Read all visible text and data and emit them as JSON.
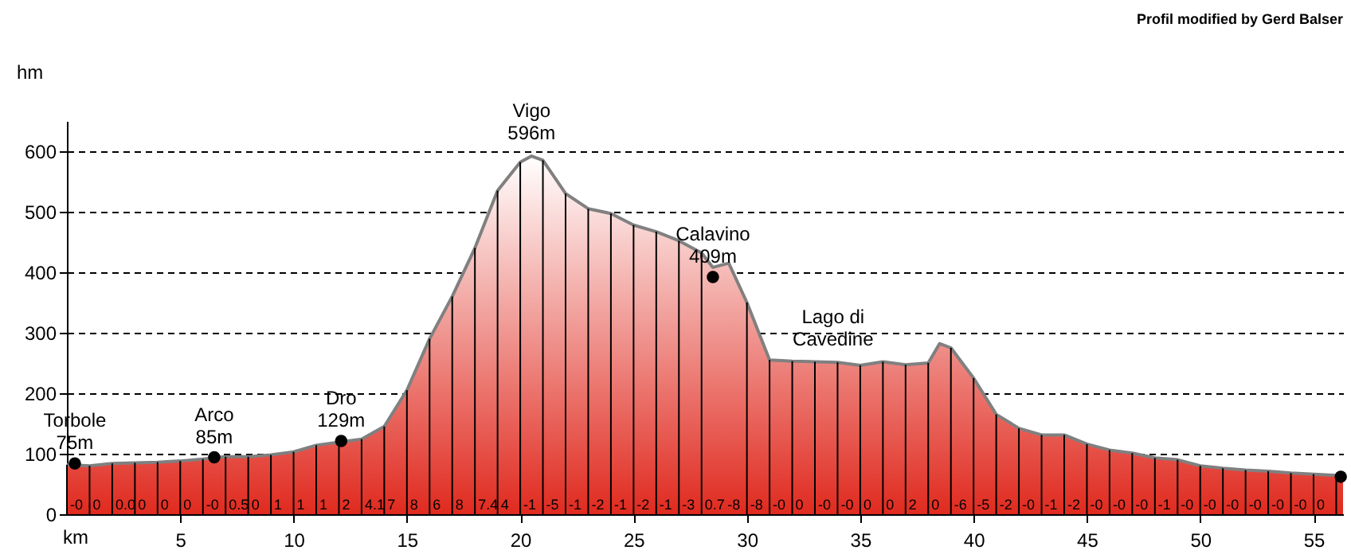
{
  "chart_data": {
    "type": "area",
    "title": "Profil modified by Gerd Balser",
    "xlabel": "km",
    "ylabel": "hm",
    "xlim": [
      0,
      56.3
    ],
    "xticks": [
      5,
      10,
      15,
      20,
      25,
      30,
      35,
      40,
      45,
      50,
      55
    ],
    "ylim": [
      0,
      650
    ],
    "yticks": [
      0,
      100,
      200,
      300,
      400,
      500,
      600
    ],
    "grid": true,
    "series": [
      {
        "color": "#e02a1f",
        "x": [
          0,
          1,
          2,
          3,
          4,
          5,
          6,
          7,
          8,
          9,
          10,
          11,
          12,
          13,
          14,
          15,
          16,
          17,
          18,
          19,
          20,
          20.5,
          21,
          22,
          23,
          24,
          25,
          26,
          27,
          28,
          28.5,
          29.2,
          30,
          31,
          32,
          33,
          34,
          35,
          36,
          37,
          38,
          38.5,
          39,
          40,
          41,
          42,
          43,
          44,
          45,
          46,
          47,
          48,
          49,
          50,
          51,
          52,
          53,
          54,
          55,
          56,
          56.3
        ],
        "values": [
          82,
          80,
          84,
          85,
          86,
          88,
          91,
          95,
          95,
          98,
          103,
          114,
          119,
          124,
          145,
          205,
          290,
          360,
          440,
          535,
          582,
          592,
          585,
          530,
          505,
          497,
          478,
          467,
          452,
          432,
          408,
          415,
          350,
          255,
          253,
          252,
          251,
          246,
          252,
          247,
          250,
          282,
          275,
          225,
          165,
          142,
          131,
          131,
          116,
          106,
          101,
          93,
          90,
          80,
          76,
          73,
          71,
          68,
          66,
          64,
          63
        ]
      },
      {
        "type": "scatter",
        "color": "#000000",
        "marker": "circle",
        "x": [
          0.35,
          6.5,
          12.1,
          28.5,
          56.2
        ],
        "values": [
          84,
          94,
          121,
          392,
          62
        ]
      }
    ],
    "annotations": [
      {
        "text": "Torbole\n75m",
        "x": 0.35,
        "y": 84
      },
      {
        "text": "Arco\n85m",
        "x": 6.5,
        "y": 94
      },
      {
        "text": "Dro\n129m",
        "x": 12.1,
        "y": 121
      },
      {
        "text": "Vigo\n596m",
        "x": 20.5,
        "y": 596
      },
      {
        "text": "Calavino\n409m",
        "x": 28.5,
        "y": 392
      },
      {
        "text": "Lago di\nCavedine",
        "x": 33.8,
        "y": 255
      },
      {
        "text": "-0",
        "x": 0,
        "y": 0
      },
      {
        "text": "0",
        "x": 1,
        "y": 0
      },
      {
        "text": "0.0",
        "x": 2,
        "y": 0
      },
      {
        "text": "0",
        "x": 3,
        "y": 0
      },
      {
        "text": "0",
        "x": 4,
        "y": 0
      },
      {
        "text": "0",
        "x": 5,
        "y": 0
      },
      {
        "text": "-0",
        "x": 6,
        "y": 0
      },
      {
        "text": "0.5",
        "x": 7,
        "y": 0
      },
      {
        "text": "0",
        "x": 8,
        "y": 0
      },
      {
        "text": "1",
        "x": 9,
        "y": 0
      },
      {
        "text": "1",
        "x": 10,
        "y": 0
      },
      {
        "text": "1",
        "x": 11,
        "y": 0
      },
      {
        "text": "2",
        "x": 12,
        "y": 0
      },
      {
        "text": "4.1",
        "x": 13,
        "y": 0
      },
      {
        "text": "7",
        "x": 14,
        "y": 0
      },
      {
        "text": "8",
        "x": 15,
        "y": 0
      },
      {
        "text": "6",
        "x": 16,
        "y": 0
      },
      {
        "text": "8",
        "x": 17,
        "y": 0
      },
      {
        "text": "7.4",
        "x": 18,
        "y": 0
      },
      {
        "text": "4",
        "x": 19,
        "y": 0
      },
      {
        "text": "-1",
        "x": 20,
        "y": 0
      },
      {
        "text": "-5",
        "x": 21,
        "y": 0
      },
      {
        "text": "-1",
        "x": 22,
        "y": 0
      },
      {
        "text": "-2",
        "x": 23,
        "y": 0
      },
      {
        "text": "-1",
        "x": 24,
        "y": 0
      },
      {
        "text": "-2",
        "x": 25,
        "y": 0
      },
      {
        "text": "-1",
        "x": 26,
        "y": 0
      },
      {
        "text": "-3",
        "x": 27,
        "y": 0
      },
      {
        "text": "0.7",
        "x": 28,
        "y": 0
      },
      {
        "text": "-8",
        "x": 29,
        "y": 0
      },
      {
        "text": "-8",
        "x": 30,
        "y": 0
      },
      {
        "text": "-0",
        "x": 31,
        "y": 0
      },
      {
        "text": "0",
        "x": 32,
        "y": 0
      },
      {
        "text": "-0",
        "x": 33,
        "y": 0
      },
      {
        "text": "-0",
        "x": 34,
        "y": 0
      },
      {
        "text": "0",
        "x": 35,
        "y": 0
      },
      {
        "text": "0",
        "x": 36,
        "y": 0
      },
      {
        "text": "2",
        "x": 37,
        "y": 0
      },
      {
        "text": "0",
        "x": 38,
        "y": 0
      },
      {
        "text": "-6",
        "x": 39,
        "y": 0
      },
      {
        "text": "-5",
        "x": 40,
        "y": 0
      },
      {
        "text": "-2",
        "x": 41,
        "y": 0
      },
      {
        "text": "-0",
        "x": 42,
        "y": 0
      },
      {
        "text": "-1",
        "x": 43,
        "y": 0
      },
      {
        "text": "-2",
        "x": 44,
        "y": 0
      },
      {
        "text": "-0",
        "x": 45,
        "y": 0
      },
      {
        "text": "-0",
        "x": 46,
        "y": 0
      },
      {
        "text": "-0",
        "x": 47,
        "y": 0
      },
      {
        "text": "-1",
        "x": 48,
        "y": 0
      },
      {
        "text": "-0",
        "x": 49,
        "y": 0
      },
      {
        "text": "-0",
        "x": 50,
        "y": 0
      },
      {
        "text": "-0",
        "x": 51,
        "y": 0
      },
      {
        "text": "-0",
        "x": 52,
        "y": 0
      },
      {
        "text": "-0",
        "x": 53,
        "y": 0
      },
      {
        "text": "-0",
        "x": 54,
        "y": 0
      },
      {
        "text": "0",
        "x": 55,
        "y": 0
      }
    ]
  }
}
